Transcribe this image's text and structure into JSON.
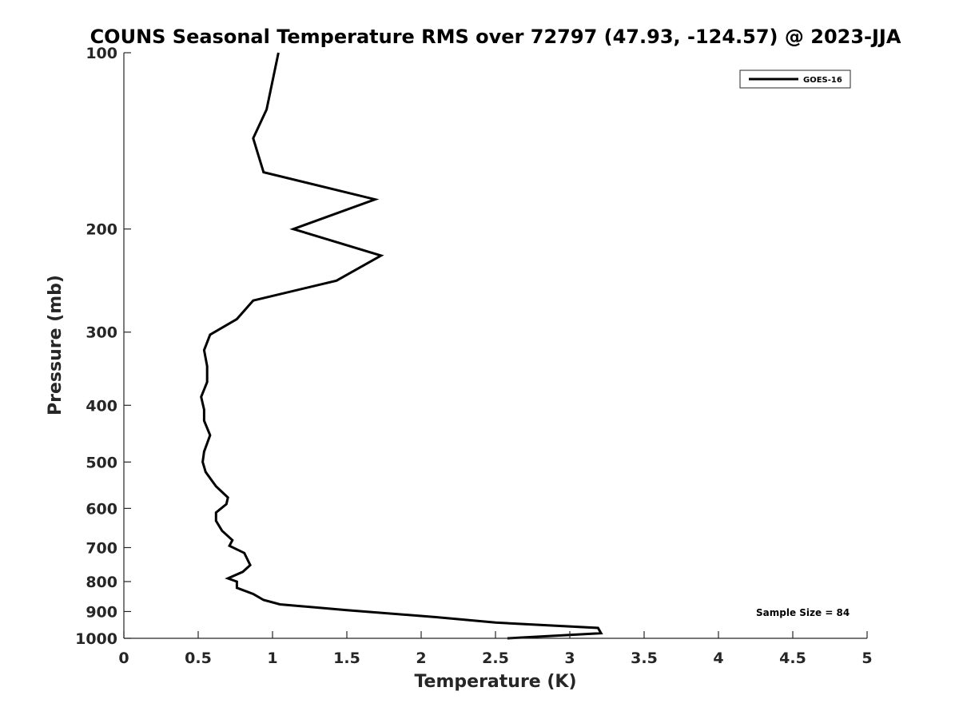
{
  "chart_data": {
    "type": "line",
    "title": "COUNS Seasonal Temperature RMS over 72797 (47.93, -124.57) @ 2023-JJA",
    "xlabel": "Temperature (K)",
    "ylabel": "Pressure (mb)",
    "xlim": [
      0,
      5
    ],
    "ylim": [
      100,
      1000
    ],
    "y_scale": "log",
    "y_reversed": true,
    "x_ticks": [
      "0",
      "0.5",
      "1",
      "1.5",
      "2",
      "2.5",
      "3",
      "3.5",
      "4",
      "4.5",
      "5"
    ],
    "x_tick_values": [
      0,
      0.5,
      1,
      1.5,
      2,
      2.5,
      3,
      3.5,
      4,
      4.5,
      5
    ],
    "y_ticks": [
      "100",
      "200",
      "300",
      "400",
      "500",
      "600",
      "700",
      "800",
      "900",
      "1000"
    ],
    "y_tick_values": [
      100,
      200,
      300,
      400,
      500,
      600,
      700,
      800,
      900,
      1000
    ],
    "grid": false,
    "legend": {
      "placement": "top-right",
      "entries": [
        "GOES-16"
      ]
    },
    "annotation": "Sample Size = 84",
    "series": [
      {
        "name": "GOES-16",
        "color": "#000000",
        "x": [
          1.04,
          0.96,
          0.87,
          0.94,
          1.69,
          1.14,
          1.73,
          1.43,
          0.87,
          0.76,
          0.58,
          0.54,
          0.56,
          0.56,
          0.52,
          0.54,
          0.54,
          0.58,
          0.54,
          0.53,
          0.55,
          0.62,
          0.7,
          0.69,
          0.62,
          0.62,
          0.66,
          0.73,
          0.71,
          0.81,
          0.85,
          0.8,
          0.7,
          0.76,
          0.76,
          0.87,
          0.94,
          1.05,
          1.5,
          2.1,
          2.5,
          3.19,
          3.21,
          2.58
        ],
        "y": [
          100,
          125,
          140,
          160,
          178,
          200,
          222,
          245,
          265,
          285,
          303,
          322,
          343,
          365,
          387,
          407,
          425,
          450,
          480,
          500,
          520,
          550,
          575,
          590,
          610,
          630,
          655,
          680,
          695,
          715,
          750,
          770,
          790,
          800,
          820,
          840,
          860,
          875,
          895,
          920,
          940,
          960,
          980,
          1000
        ]
      }
    ]
  }
}
